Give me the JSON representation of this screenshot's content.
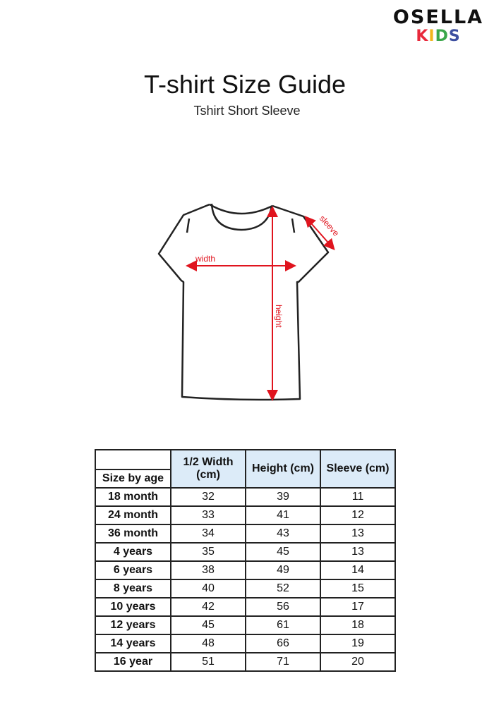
{
  "logo": {
    "top": "OSELLA",
    "kids": [
      "K",
      "I",
      "D",
      "S"
    ],
    "kids_colors": [
      "#e8293b",
      "#f2b51c",
      "#3aa64a",
      "#3d4fa0"
    ]
  },
  "title": "T-shirt Size Guide",
  "subtitle": "Tshirt Short Sleeve",
  "diagram": {
    "labels": {
      "width": "width",
      "height": "height",
      "sleeve": "sleeve"
    },
    "arrow_color": "#e0141e"
  },
  "table": {
    "headers": {
      "age": "Size by age",
      "width": "1/2 Width (cm)",
      "height": "Height (cm)",
      "sleeve": "Sleeve (cm)"
    },
    "rows": [
      [
        "18 month",
        "32",
        "39",
        "11"
      ],
      [
        "24 month",
        "33",
        "41",
        "12"
      ],
      [
        "36 month",
        "34",
        "43",
        "13"
      ],
      [
        "4 years",
        "35",
        "45",
        "13"
      ],
      [
        "6 years",
        "38",
        "49",
        "14"
      ],
      [
        "8 years",
        "40",
        "52",
        "15"
      ],
      [
        "10 years",
        "42",
        "56",
        "17"
      ],
      [
        "12 years",
        "45",
        "61",
        "18"
      ],
      [
        "14 years",
        "48",
        "66",
        "19"
      ],
      [
        "16 year",
        "51",
        "71",
        "20"
      ]
    ]
  }
}
